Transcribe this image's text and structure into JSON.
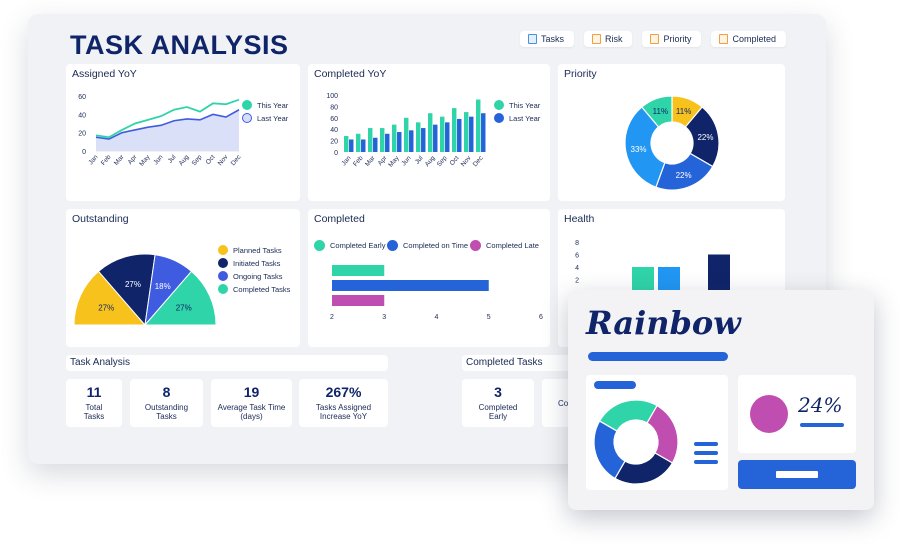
{
  "header": {
    "title": "TASK ANALYSIS"
  },
  "filters": [
    {
      "label": "Tasks",
      "icon": "document-icon"
    },
    {
      "label": "Risk",
      "icon": "document-icon"
    },
    {
      "label": "Priority",
      "icon": "document-icon"
    },
    {
      "label": "Completed",
      "icon": "document-icon"
    }
  ],
  "colors": {
    "navy": "#0f2469",
    "blue": "#2563d8",
    "teal": "#2fd4a8",
    "lightblue": "#2196f3",
    "yellow": "#f7c21b",
    "indigo": "#3f5be0",
    "magenta": "#c04db0",
    "pale": "#d6ddf7"
  },
  "panels": {
    "assigned_yoy": {
      "title": "Assigned YoY"
    },
    "completed_yoy": {
      "title": "Completed YoY"
    },
    "priority": {
      "title": "Priority"
    },
    "outstanding": {
      "title": "Outstanding"
    },
    "completed": {
      "title": "Completed"
    },
    "health": {
      "title": "Health"
    }
  },
  "chart_data": [
    {
      "id": "assigned_yoy",
      "type": "area",
      "categories": [
        "Jan",
        "Feb",
        "Mar",
        "Apr",
        "May",
        "Jun",
        "Jul",
        "Aug",
        "Sep",
        "Oct",
        "Nov",
        "Dec"
      ],
      "ylim": [
        0,
        60
      ],
      "yticks": [
        0,
        20,
        40,
        60
      ],
      "series": [
        {
          "name": "This Year",
          "values": [
            17,
            15,
            23,
            30,
            34,
            38,
            45,
            48,
            43,
            52,
            51,
            56
          ]
        },
        {
          "name": "Last Year",
          "values": [
            15,
            13,
            20,
            23,
            26,
            28,
            33,
            35,
            34,
            40,
            37,
            45
          ]
        }
      ]
    },
    {
      "id": "completed_yoy",
      "type": "bar",
      "categories": [
        "Jan",
        "Feb",
        "Mar",
        "Apr",
        "May",
        "Jun",
        "Jul",
        "Aug",
        "Sep",
        "Oct",
        "Nov",
        "Dec"
      ],
      "ylim": [
        0,
        100
      ],
      "yticks": [
        0,
        20,
        40,
        60,
        80,
        100
      ],
      "series": [
        {
          "name": "This Year",
          "values": [
            28,
            32,
            42,
            42,
            48,
            60,
            52,
            68,
            62,
            77,
            70,
            92
          ]
        },
        {
          "name": "Last Year",
          "values": [
            22,
            22,
            25,
            32,
            35,
            38,
            42,
            48,
            52,
            58,
            62,
            68
          ]
        }
      ]
    },
    {
      "id": "priority",
      "type": "pie",
      "variant": "donut",
      "labels": [
        "11%",
        "22%",
        "22%",
        "33%",
        "11%"
      ],
      "values": [
        11,
        22,
        22,
        33,
        11
      ],
      "colors": [
        "#f7c21b",
        "#0f2469",
        "#2563d8",
        "#2196f3",
        "#2fd4a8"
      ]
    },
    {
      "id": "outstanding",
      "type": "pie",
      "variant": "half",
      "legend": [
        "Planned Tasks",
        "Initiated Tasks",
        "Ongoing Tasks",
        "Completed Tasks"
      ],
      "labels": [
        "27%",
        "27%",
        "18%",
        "27%"
      ],
      "values": [
        27,
        27,
        18,
        27
      ],
      "colors": [
        "#f7c21b",
        "#0f2469",
        "#3f5be0",
        "#2fd4a8"
      ]
    },
    {
      "id": "completed",
      "type": "bar",
      "orientation": "horizontal",
      "xlim": [
        2,
        6
      ],
      "xticks": [
        2,
        3,
        4,
        5,
        6
      ],
      "series": [
        {
          "name": "Completed Early",
          "value": 3,
          "color": "#2fd4a8"
        },
        {
          "name": "Completed on Time",
          "value": 5,
          "color": "#2563d8"
        },
        {
          "name": "Completed Late",
          "value": 3,
          "color": "#c04db0"
        }
      ]
    },
    {
      "id": "health",
      "type": "bar",
      "ylim": [
        0,
        8
      ],
      "yticks": [
        0,
        2,
        4,
        6,
        8
      ],
      "values": [
        0.2,
        4,
        4,
        0,
        6,
        0.2
      ],
      "colors": [
        "#f7c21b",
        "#2fd4a8",
        "#2196f3",
        "#c04db0",
        "#0f2469",
        "#d6ddf7"
      ]
    }
  ],
  "task_analysis": {
    "title": "Task Analysis",
    "stats": [
      {
        "value": "11",
        "label": "Total Tasks"
      },
      {
        "value": "8",
        "label": "Outstanding Tasks"
      },
      {
        "value": "19",
        "label": "Average Task Time (days)"
      },
      {
        "value": "267%",
        "label": "Tasks Assigned Increase YoY"
      }
    ]
  },
  "completed_tasks": {
    "title": "Completed Tasks",
    "stats": [
      {
        "value": "3",
        "label": "Completed Early"
      },
      {
        "value": "",
        "label": "Co o"
      }
    ]
  },
  "rainbow": {
    "logo": "Rainbow",
    "percent": "24%"
  }
}
